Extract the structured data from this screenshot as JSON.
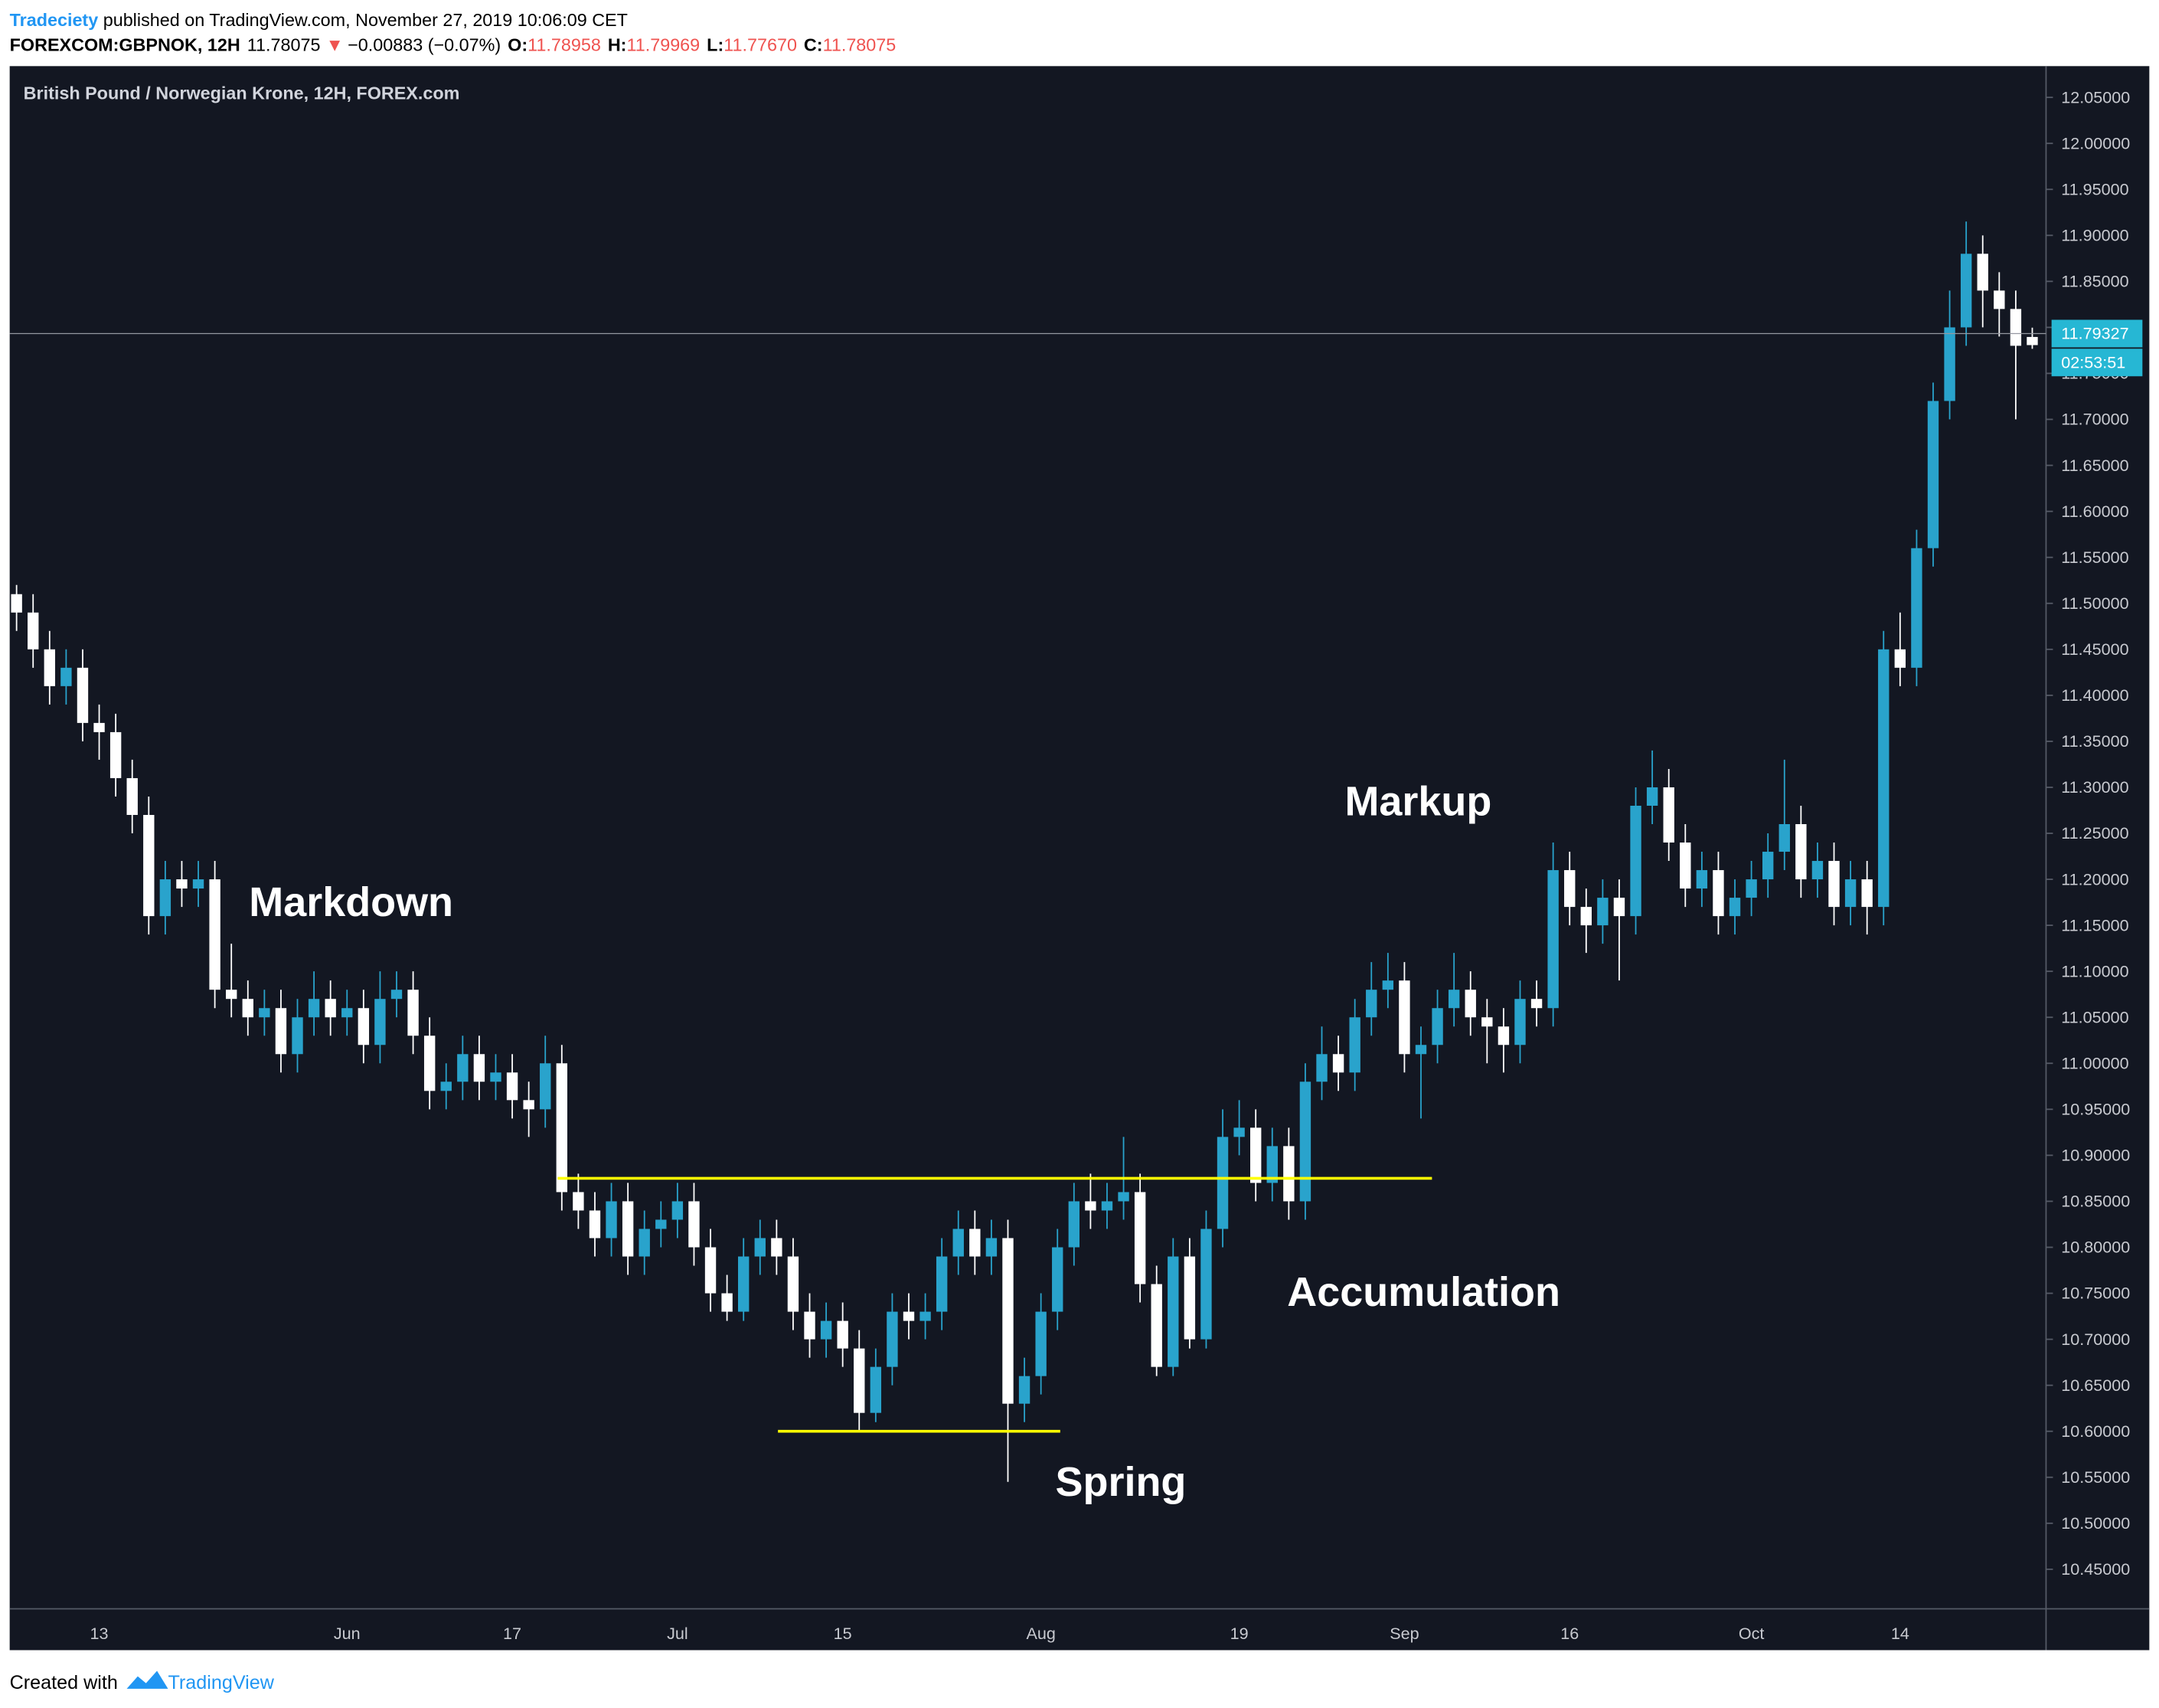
{
  "header": {
    "author": "Tradeciety",
    "published": " published on TradingView.com, November 27, 2019 10:06:09 CET",
    "symbol": "FOREXCOM:GBPNOK, 12H",
    "price": "11.78075",
    "arrow": "▼",
    "change": "−0.00883 (−0.07%)",
    "o_label": "O:",
    "o_value": "11.78958",
    "h_label": "H:",
    "h_value": "11.79969",
    "l_label": "L:",
    "l_value": "11.77670",
    "c_label": "C:",
    "c_value": "11.78075"
  },
  "chart_data": {
    "type": "candlestick",
    "title": "British Pound / Norwegian Krone, 12H, FOREX.com",
    "up_color": "#29a3cc",
    "down_color": "#ffffff",
    "level_color": "#ffff00",
    "categories": [
      null,
      null,
      null,
      null,
      null,
      "13",
      null,
      null,
      null,
      null,
      null,
      null,
      null,
      null,
      null,
      null,
      null,
      null,
      null,
      null,
      "Jun",
      null,
      null,
      null,
      null,
      null,
      null,
      null,
      null,
      null,
      "17",
      null,
      null,
      null,
      null,
      null,
      null,
      null,
      null,
      null,
      "Jul",
      null,
      null,
      null,
      null,
      null,
      null,
      null,
      null,
      null,
      "15",
      null,
      null,
      null,
      null,
      null,
      null,
      null,
      null,
      null,
      null,
      null,
      "Aug",
      null,
      null,
      null,
      null,
      null,
      null,
      null,
      null,
      null,
      null,
      null,
      "19",
      null,
      null,
      null,
      null,
      null,
      null,
      null,
      null,
      null,
      "Sep",
      null,
      null,
      null,
      null,
      null,
      null,
      null,
      null,
      null,
      "16",
      null,
      null,
      null,
      null,
      null,
      null,
      null,
      null,
      null,
      null,
      "Oct",
      null,
      null,
      null,
      null,
      null,
      null,
      null,
      null,
      "14",
      null,
      null,
      null,
      null,
      null,
      null,
      null,
      null
    ],
    "open": [
      11.51,
      11.49,
      11.45,
      11.41,
      11.43,
      11.37,
      11.36,
      11.31,
      11.27,
      11.16,
      11.2,
      11.19,
      11.2,
      11.08,
      11.07,
      11.05,
      11.06,
      11.01,
      11.05,
      11.07,
      11.05,
      11.06,
      11.02,
      11.07,
      11.08,
      11.03,
      10.97,
      10.98,
      11.01,
      10.98,
      10.99,
      10.96,
      10.95,
      11.0,
      10.86,
      10.84,
      10.81,
      10.85,
      10.79,
      10.82,
      10.83,
      10.85,
      10.8,
      10.75,
      10.73,
      10.79,
      10.81,
      10.79,
      10.73,
      10.7,
      10.72,
      10.69,
      10.62,
      10.67,
      10.73,
      10.72,
      10.73,
      10.79,
      10.82,
      10.79,
      10.81,
      10.63,
      10.66,
      10.73,
      10.8,
      10.85,
      10.84,
      10.85,
      10.86,
      10.76,
      10.67,
      10.79,
      10.7,
      10.82,
      10.92,
      10.93,
      10.87,
      10.91,
      10.85,
      10.98,
      11.01,
      10.99,
      11.05,
      11.08,
      11.09,
      11.01,
      11.02,
      11.06,
      11.08,
      11.05,
      11.04,
      11.02,
      11.07,
      11.06,
      11.21,
      11.17,
      11.15,
      11.18,
      11.16,
      11.28,
      11.3,
      11.24,
      11.19,
      11.21,
      11.16,
      11.18,
      11.2,
      11.23,
      11.26,
      11.2,
      11.22,
      11.17,
      11.2,
      11.17,
      11.45,
      11.43,
      11.56,
      11.72,
      11.8,
      11.88,
      11.84,
      11.82,
      11.78958
    ],
    "high": [
      11.52,
      11.51,
      11.47,
      11.45,
      11.45,
      11.39,
      11.38,
      11.33,
      11.29,
      11.22,
      11.22,
      11.22,
      11.22,
      11.13,
      11.09,
      11.08,
      11.08,
      11.07,
      11.1,
      11.09,
      11.08,
      11.08,
      11.1,
      11.1,
      11.1,
      11.05,
      11.0,
      11.03,
      11.03,
      11.01,
      11.01,
      10.98,
      11.03,
      11.02,
      10.88,
      10.86,
      10.87,
      10.87,
      10.84,
      10.85,
      10.87,
      10.87,
      10.82,
      10.77,
      10.81,
      10.83,
      10.83,
      10.81,
      10.75,
      10.74,
      10.74,
      10.71,
      10.69,
      10.75,
      10.75,
      10.75,
      10.81,
      10.84,
      10.84,
      10.83,
      10.83,
      10.68,
      10.75,
      10.82,
      10.87,
      10.88,
      10.87,
      10.92,
      10.88,
      10.78,
      10.81,
      10.81,
      10.84,
      10.95,
      10.96,
      10.95,
      10.93,
      10.93,
      11.0,
      11.04,
      11.03,
      11.07,
      11.11,
      11.12,
      11.11,
      11.04,
      11.08,
      11.12,
      11.1,
      11.07,
      11.06,
      11.09,
      11.09,
      11.24,
      11.23,
      11.19,
      11.2,
      11.2,
      11.3,
      11.34,
      11.32,
      11.26,
      11.23,
      11.23,
      11.2,
      11.22,
      11.25,
      11.33,
      11.28,
      11.24,
      11.24,
      11.22,
      11.22,
      11.47,
      11.49,
      11.58,
      11.74,
      11.84,
      11.915,
      11.9,
      11.86,
      11.84,
      11.79969
    ],
    "low": [
      11.47,
      11.43,
      11.39,
      11.39,
      11.35,
      11.33,
      11.29,
      11.25,
      11.14,
      11.14,
      11.17,
      11.17,
      11.06,
      11.05,
      11.03,
      11.03,
      10.99,
      10.99,
      11.03,
      11.03,
      11.03,
      11.0,
      11.0,
      11.05,
      11.01,
      10.95,
      10.95,
      10.96,
      10.96,
      10.96,
      10.94,
      10.92,
      10.93,
      10.84,
      10.82,
      10.79,
      10.79,
      10.77,
      10.77,
      10.8,
      10.81,
      10.78,
      10.73,
      10.72,
      10.72,
      10.77,
      10.77,
      10.71,
      10.68,
      10.68,
      10.67,
      10.6,
      10.61,
      10.65,
      10.7,
      10.7,
      10.71,
      10.77,
      10.77,
      10.77,
      10.545,
      10.61,
      10.64,
      10.71,
      10.78,
      10.82,
      10.82,
      10.83,
      10.74,
      10.66,
      10.66,
      10.69,
      10.69,
      10.8,
      10.9,
      10.85,
      10.85,
      10.83,
      10.83,
      10.96,
      10.97,
      10.97,
      11.03,
      11.06,
      10.99,
      10.94,
      11.0,
      11.04,
      11.03,
      11.0,
      10.99,
      11.0,
      11.04,
      11.04,
      11.15,
      11.12,
      11.13,
      11.09,
      11.14,
      11.26,
      11.22,
      11.17,
      11.17,
      11.14,
      11.14,
      11.16,
      11.18,
      11.21,
      11.18,
      11.18,
      11.15,
      11.15,
      11.14,
      11.15,
      11.41,
      11.41,
      11.54,
      11.7,
      11.78,
      11.8,
      11.79,
      11.7,
      11.7767
    ],
    "close": [
      11.49,
      11.45,
      11.41,
      11.43,
      11.37,
      11.36,
      11.31,
      11.27,
      11.16,
      11.2,
      11.19,
      11.2,
      11.08,
      11.07,
      11.05,
      11.06,
      11.01,
      11.05,
      11.07,
      11.05,
      11.06,
      11.02,
      11.07,
      11.08,
      11.03,
      10.97,
      10.98,
      11.01,
      10.98,
      10.99,
      10.96,
      10.95,
      11.0,
      10.86,
      10.84,
      10.81,
      10.85,
      10.79,
      10.82,
      10.83,
      10.85,
      10.8,
      10.75,
      10.73,
      10.79,
      10.81,
      10.79,
      10.73,
      10.7,
      10.72,
      10.69,
      10.62,
      10.67,
      10.73,
      10.72,
      10.73,
      10.79,
      10.82,
      10.79,
      10.81,
      10.63,
      10.66,
      10.73,
      10.8,
      10.85,
      10.84,
      10.85,
      10.86,
      10.76,
      10.67,
      10.79,
      10.7,
      10.82,
      10.92,
      10.93,
      10.87,
      10.91,
      10.85,
      10.98,
      11.01,
      10.99,
      11.05,
      11.08,
      11.09,
      11.01,
      11.02,
      11.06,
      11.08,
      11.05,
      11.04,
      11.02,
      11.07,
      11.06,
      11.21,
      11.17,
      11.15,
      11.18,
      11.16,
      11.28,
      11.3,
      11.24,
      11.19,
      11.21,
      11.16,
      11.18,
      11.2,
      11.23,
      11.26,
      11.2,
      11.22,
      11.17,
      11.2,
      11.17,
      11.45,
      11.43,
      11.56,
      11.72,
      11.8,
      11.88,
      11.84,
      11.82,
      11.78,
      11.78075
    ],
    "ylim": [
      10.407,
      12.084
    ],
    "yticks": [
      {
        "value": 10.45,
        "label": "10.45000"
      },
      {
        "value": 10.5,
        "label": "10.50000"
      },
      {
        "value": 10.55,
        "label": "10.55000"
      },
      {
        "value": 10.6,
        "label": "10.60000"
      },
      {
        "value": 10.65,
        "label": "10.65000"
      },
      {
        "value": 10.7,
        "label": "10.70000"
      },
      {
        "value": 10.75,
        "label": "10.75000"
      },
      {
        "value": 10.8,
        "label": "10.80000"
      },
      {
        "value": 10.85,
        "label": "10.85000"
      },
      {
        "value": 10.9,
        "label": "10.90000"
      },
      {
        "value": 10.95,
        "label": "10.95000"
      },
      {
        "value": 11.0,
        "label": "11.00000"
      },
      {
        "value": 11.05,
        "label": "11.05000"
      },
      {
        "value": 11.1,
        "label": "11.10000"
      },
      {
        "value": 11.15,
        "label": "11.15000"
      },
      {
        "value": 11.2,
        "label": "11.20000"
      },
      {
        "value": 11.25,
        "label": "11.25000"
      },
      {
        "value": 11.3,
        "label": "11.30000"
      },
      {
        "value": 11.35,
        "label": "11.35000"
      },
      {
        "value": 11.4,
        "label": "11.40000"
      },
      {
        "value": 11.45,
        "label": "11.45000"
      },
      {
        "value": 11.5,
        "label": "11.50000"
      },
      {
        "value": 11.55,
        "label": "11.55000"
      },
      {
        "value": 11.6,
        "label": "11.60000"
      },
      {
        "value": 11.65,
        "label": "11.65000"
      },
      {
        "value": 11.7,
        "label": "11.70000"
      },
      {
        "value": 11.75,
        "label": "11.75000"
      },
      {
        "value": 11.8,
        "label": "11.80000"
      },
      {
        "value": 11.85,
        "label": "11.85000"
      },
      {
        "value": 11.9,
        "label": "11.90000"
      },
      {
        "value": 11.95,
        "label": "11.95000"
      },
      {
        "value": 12.0,
        "label": "12.00000"
      },
      {
        "value": 12.05,
        "label": "12.05000"
      }
    ],
    "levels": [
      10.875,
      10.6
    ],
    "last_price": {
      "value": 11.79327,
      "label": "11.79327"
    },
    "countdown": "02:53:51",
    "annotations": [
      "Markdown",
      "Markup",
      "Accumulation",
      "Spring"
    ]
  },
  "footer": {
    "created": "Created with",
    "brand": "TradingView"
  }
}
